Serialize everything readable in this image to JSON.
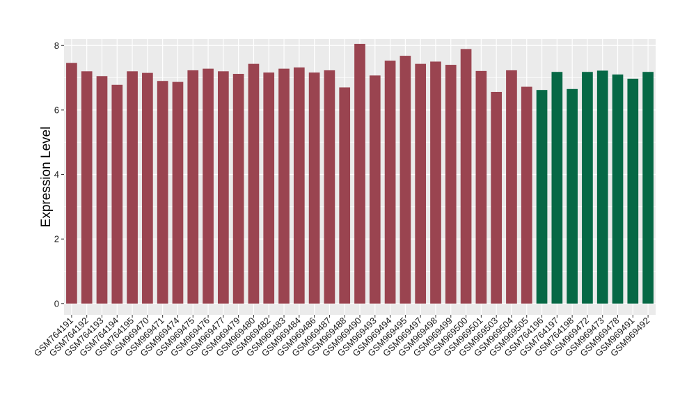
{
  "chart_data": {
    "type": "bar",
    "title": "",
    "xlabel": "",
    "ylabel": "Expression Level",
    "ylim": [
      -0.35,
      8.2
    ],
    "yticks": [
      0,
      2,
      4,
      6,
      8
    ],
    "grid": true,
    "legend": "none",
    "colors": {
      "red": "#9a4450",
      "green": "#066845",
      "panel": "#ebebeb",
      "grid": "#ffffff"
    },
    "categories": [
      "GSM764191",
      "GSM764192",
      "GSM764193",
      "GSM764194",
      "GSM764195",
      "GSM969470",
      "GSM969471",
      "GSM969474",
      "GSM969475",
      "GSM969476",
      "GSM969477",
      "GSM969479",
      "GSM969480",
      "GSM969482",
      "GSM969483",
      "GSM969484",
      "GSM969486",
      "GSM969487",
      "GSM969488",
      "GSM969490",
      "GSM969493",
      "GSM969494",
      "GSM969495",
      "GSM969497",
      "GSM969498",
      "GSM969499",
      "GSM969500",
      "GSM969501",
      "GSM969503",
      "GSM969504",
      "GSM969505",
      "GSM764196",
      "GSM764197",
      "GSM764198",
      "GSM969472",
      "GSM969473",
      "GSM969478",
      "GSM969491",
      "GSM969492"
    ],
    "values": [
      7.46,
      7.2,
      7.05,
      6.78,
      7.2,
      7.15,
      6.9,
      6.87,
      7.23,
      7.28,
      7.2,
      7.12,
      7.43,
      7.16,
      7.28,
      7.32,
      7.16,
      7.23,
      6.7,
      8.05,
      7.07,
      7.53,
      7.68,
      7.43,
      7.5,
      7.4,
      7.89,
      7.21,
      6.56,
      7.23,
      6.72,
      6.62,
      7.18,
      6.65,
      7.18,
      7.22,
      7.1,
      6.97,
      7.18
    ],
    "bar_groups": [
      "red",
      "red",
      "red",
      "red",
      "red",
      "red",
      "red",
      "red",
      "red",
      "red",
      "red",
      "red",
      "red",
      "red",
      "red",
      "red",
      "red",
      "red",
      "red",
      "red",
      "red",
      "red",
      "red",
      "red",
      "red",
      "red",
      "red",
      "red",
      "red",
      "red",
      "red",
      "green",
      "green",
      "green",
      "green",
      "green",
      "green",
      "green",
      "green"
    ]
  }
}
